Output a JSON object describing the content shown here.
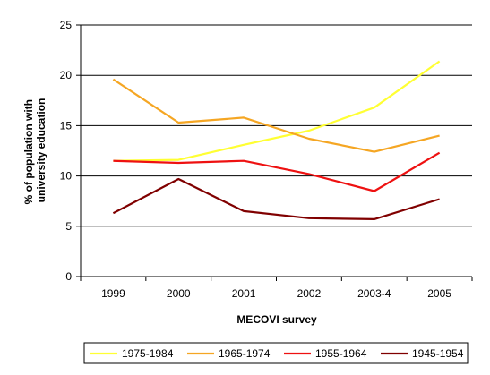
{
  "chart_data": {
    "type": "line",
    "title": "",
    "xlabel": "MECOVI survey",
    "ylabel_lines": [
      "% of population with",
      "university education"
    ],
    "categories": [
      "1999",
      "2000",
      "2001",
      "2002",
      "2003-4",
      "2005"
    ],
    "ylim": [
      0,
      25
    ],
    "yticks": [
      0,
      5,
      10,
      15,
      20,
      25
    ],
    "grid": true,
    "legend_position": "bottom",
    "series": [
      {
        "name": "1975-1984",
        "color": "#ffff33",
        "values": [
          11.5,
          11.6,
          13.1,
          14.5,
          16.8,
          21.4
        ]
      },
      {
        "name": "1965-1974",
        "color": "#f5a623",
        "values": [
          19.6,
          15.3,
          15.8,
          13.7,
          12.4,
          14.0
        ]
      },
      {
        "name": "1955-1964",
        "color": "#ee1111",
        "values": [
          11.5,
          11.3,
          11.5,
          10.2,
          8.5,
          12.3
        ]
      },
      {
        "name": "1945-1954",
        "color": "#800000",
        "values": [
          6.3,
          9.7,
          6.5,
          5.8,
          5.7,
          7.7
        ]
      }
    ]
  }
}
